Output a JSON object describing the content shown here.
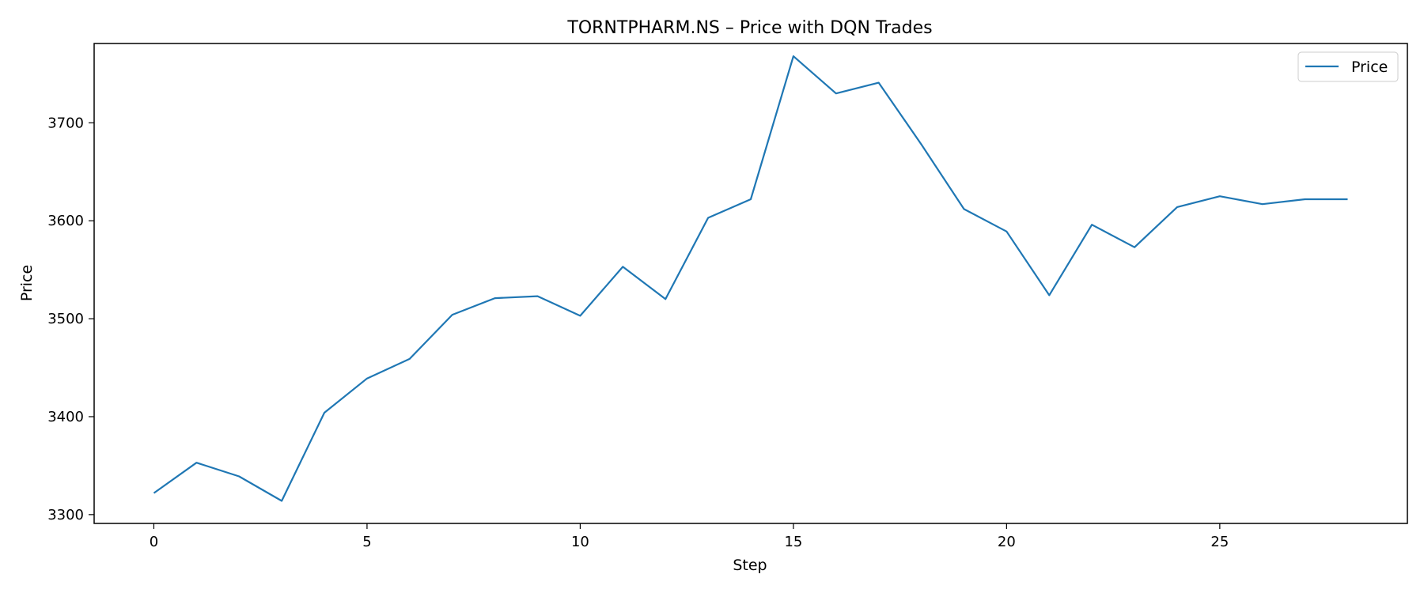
{
  "chart_data": {
    "type": "line",
    "title": "TORNTPHARM.NS – Price with DQN Trades",
    "xlabel": "Step",
    "ylabel": "Price",
    "xlim": [
      -1.4,
      29.4
    ],
    "ylim": [
      3291,
      3781
    ],
    "xticks": [
      0,
      5,
      10,
      15,
      20,
      25
    ],
    "yticks": [
      3300,
      3400,
      3500,
      3600,
      3700
    ],
    "grid": false,
    "legend": {
      "position": "top-right",
      "entries": [
        "Price"
      ]
    },
    "series": [
      {
        "name": "Price",
        "color": "#1f77b4",
        "x": [
          0,
          1,
          2,
          3,
          4,
          5,
          6,
          7,
          8,
          9,
          10,
          11,
          12,
          13,
          14,
          15,
          16,
          17,
          18,
          19,
          20,
          21,
          22,
          23,
          24,
          25,
          26,
          27,
          28
        ],
        "y": [
          3322,
          3353,
          3339,
          3314,
          3404,
          3439,
          3459,
          3504,
          3521,
          3523,
          3503,
          3553,
          3520,
          3603,
          3622,
          3768,
          3730,
          3741,
          3678,
          3612,
          3589,
          3524,
          3596,
          3573,
          3614,
          3625,
          3617,
          3622,
          3622
        ]
      }
    ]
  }
}
